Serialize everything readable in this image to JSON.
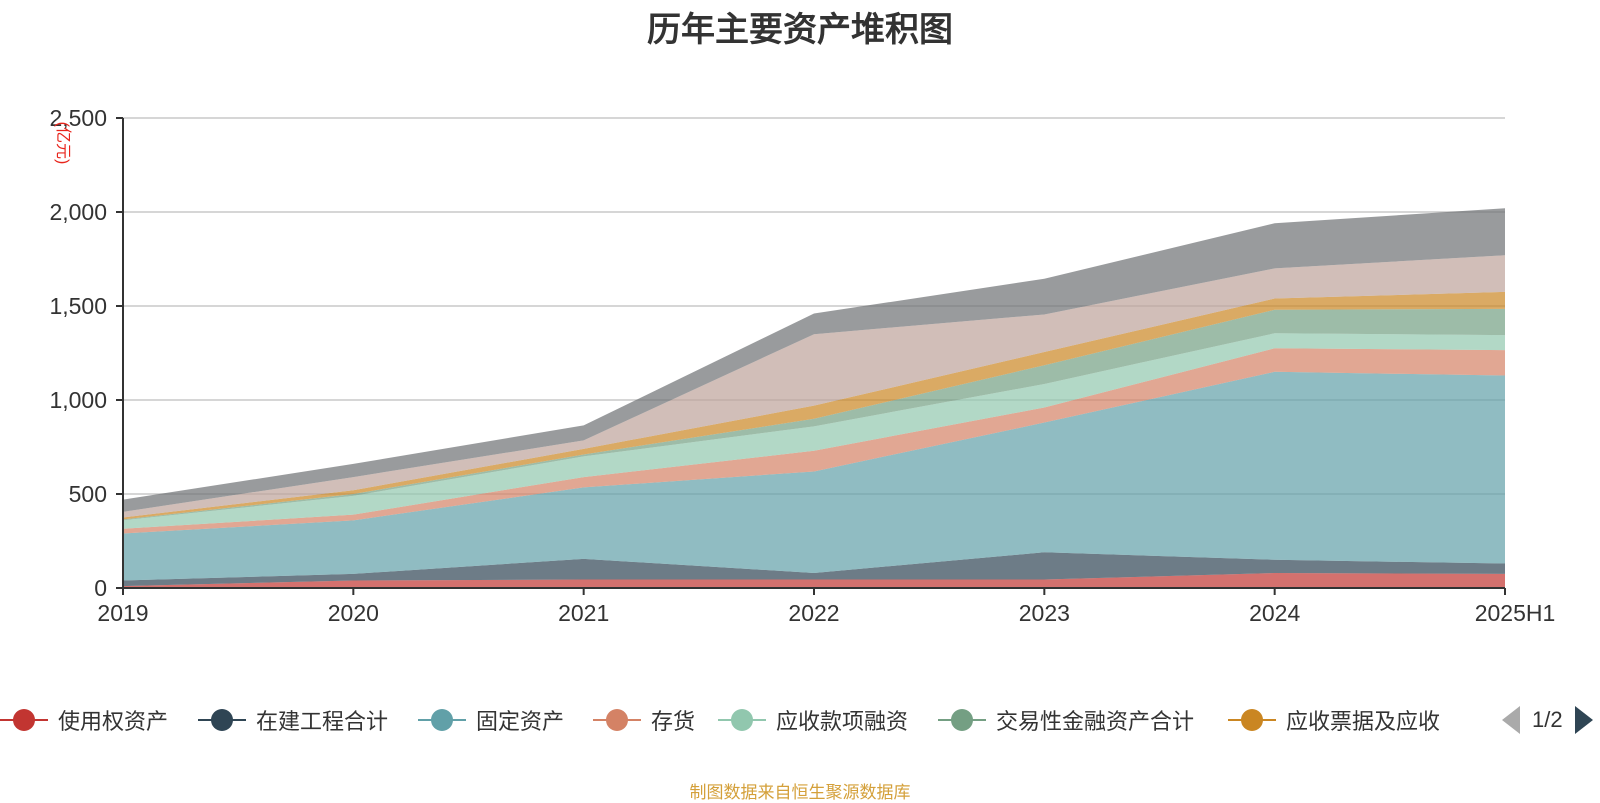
{
  "chart_data": {
    "type": "area",
    "stacked": true,
    "title": "历年主要资产堆积图",
    "ylabel": "(亿元)",
    "xlabel": "",
    "categories": [
      "2019",
      "2020",
      "2021",
      "2022",
      "2023",
      "2024",
      "2025H1"
    ],
    "ylim": [
      0,
      2500
    ],
    "yticks": [
      0,
      500,
      1000,
      1500,
      2000,
      2500
    ],
    "ytick_labels": [
      "0",
      "500",
      "1,000",
      "1,500",
      "2,000",
      "2,500"
    ],
    "grid": true,
    "legend_position": "bottom",
    "series": [
      {
        "name": "使用权资产",
        "color": "#c23531",
        "fill_opacity": 0.7,
        "values": [
          10,
          40,
          45,
          45,
          45,
          80,
          75
        ]
      },
      {
        "name": "在建工程合计",
        "color": "#2f4554",
        "fill_opacity": 0.7,
        "values": [
          30,
          35,
          110,
          35,
          145,
          70,
          55
        ]
      },
      {
        "name": "固定资产",
        "color": "#61a0a8",
        "fill_opacity": 0.7,
        "values": [
          250,
          285,
          380,
          540,
          690,
          1000,
          1000
        ]
      },
      {
        "name": "存货",
        "color": "#d48265",
        "fill_opacity": 0.7,
        "values": [
          25,
          30,
          55,
          110,
          80,
          125,
          135
        ]
      },
      {
        "name": "应收款项融资",
        "color": "#91c7ae",
        "fill_opacity": 0.7,
        "values": [
          45,
          100,
          110,
          130,
          125,
          80,
          80
        ]
      },
      {
        "name": "交易性金融资产合计",
        "color": "#749f83",
        "fill_opacity": 0.7,
        "values": [
          5,
          10,
          10,
          40,
          100,
          125,
          140
        ]
      },
      {
        "name": "应收票据及应收",
        "color": "#ca8622",
        "fill_opacity": 0.7,
        "values": [
          10,
          20,
          30,
          70,
          70,
          60,
          90
        ]
      },
      {
        "color": "#bda29a",
        "fill_opacity": 0.7,
        "values": [
          30,
          70,
          45,
          380,
          200,
          160,
          195
        ]
      },
      {
        "color": "#6e7074",
        "fill_opacity": 0.7,
        "values": [
          65,
          70,
          80,
          110,
          190,
          240,
          250
        ]
      }
    ]
  },
  "legend": {
    "items": [
      {
        "label": "使用权资产",
        "color": "#c23531"
      },
      {
        "label": "在建工程合计",
        "color": "#2f4554"
      },
      {
        "label": "固定资产",
        "color": "#61a0a8"
      },
      {
        "label": "存货",
        "color": "#d48265"
      },
      {
        "label": "应收款项融资",
        "color": "#91c7ae"
      },
      {
        "label": "交易性金融资产合计",
        "color": "#749f83"
      },
      {
        "label": "应收票据及应收",
        "color": "#ca8622"
      }
    ],
    "page_indicator": "1/2"
  },
  "source_note": "制图数据来自恒生聚源数据库"
}
